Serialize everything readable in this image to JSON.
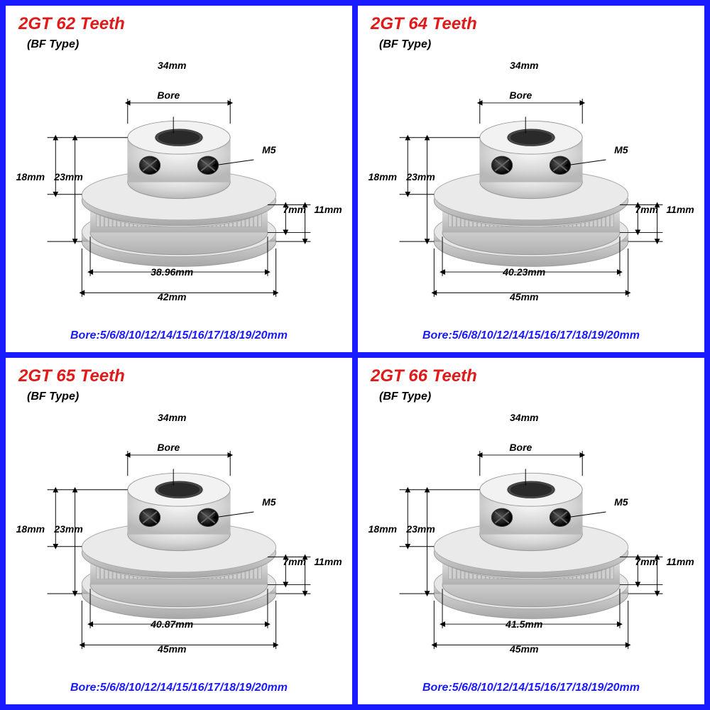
{
  "borderColor": "#1a1aff",
  "titleColor": "#e11919",
  "boreColor": "#1a1aff",
  "boreText": "Bore:5/6/8/10/12/14/15/16/17/18/19/20mm",
  "bfType": "(BF Type)",
  "topWidth": "34mm",
  "boreLabel": "Bore",
  "screwLabel": "M5",
  "leftH1": "18mm",
  "leftH2": "23mm",
  "rightH1": "7mm",
  "rightH2": "11mm",
  "panels": [
    {
      "title": "2GT 62 Teeth",
      "innerDiameter": "38.96mm",
      "outerDiameter": "42mm"
    },
    {
      "title": "2GT 64 Teeth",
      "innerDiameter": "40.23mm",
      "outerDiameter": "45mm"
    },
    {
      "title": "2GT 65 Teeth",
      "innerDiameter": "40.87mm",
      "outerDiameter": "45mm"
    },
    {
      "title": "2GT 66 Teeth",
      "innerDiameter": "41.5mm",
      "outerDiameter": "45mm"
    }
  ]
}
